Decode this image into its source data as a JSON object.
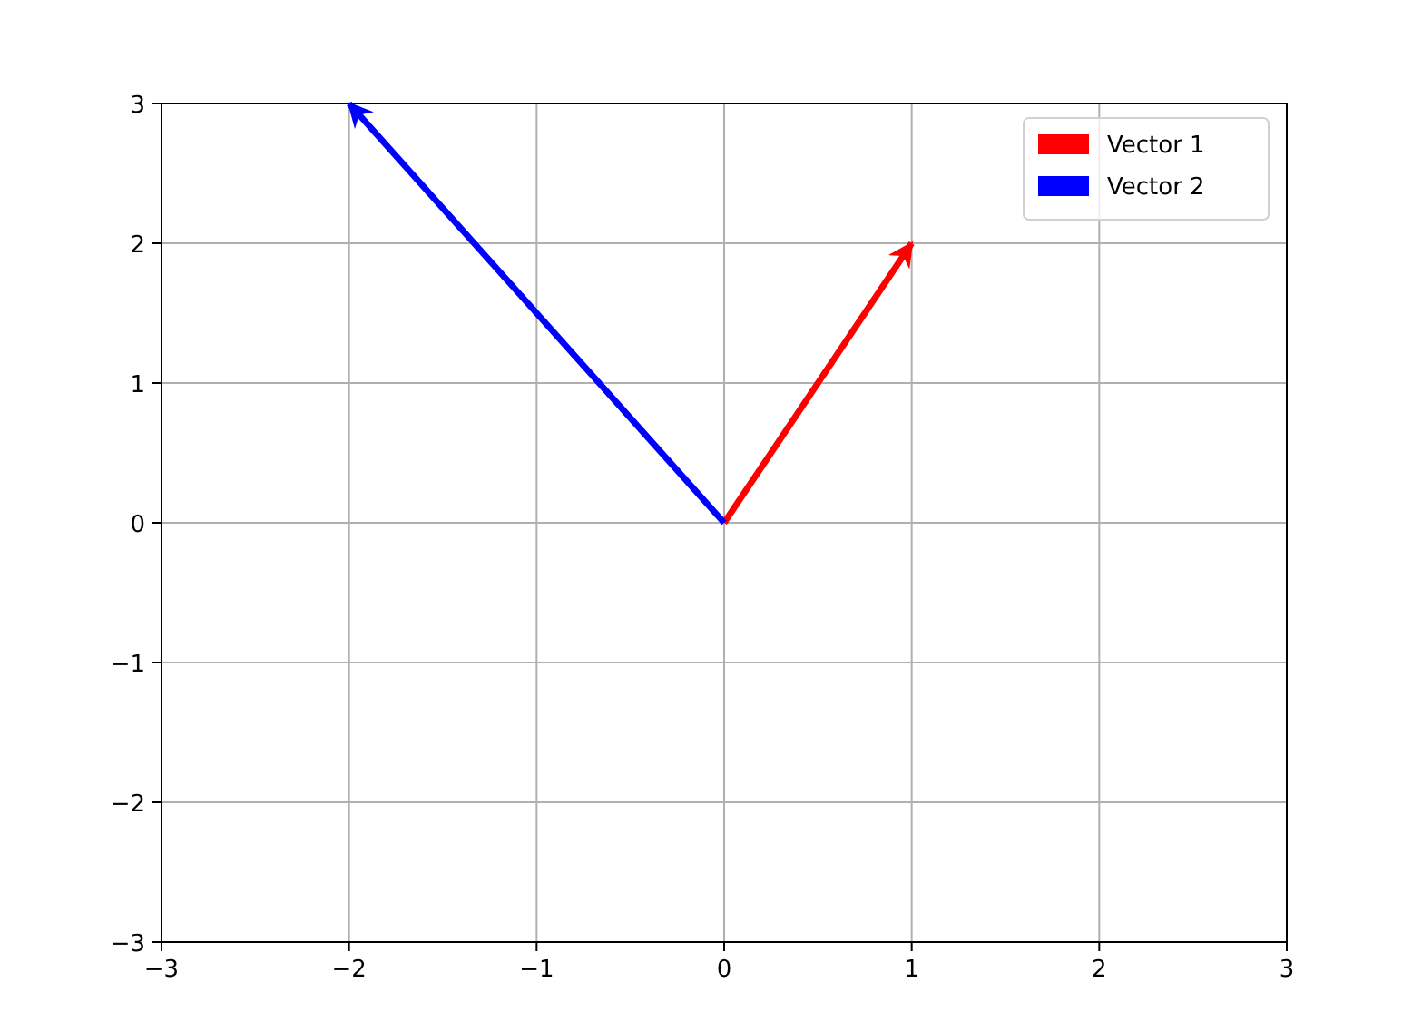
{
  "chart_data": {
    "type": "line",
    "xlim": [
      -3,
      3
    ],
    "ylim": [
      -3,
      3
    ],
    "xticks": [
      -3,
      -2,
      -1,
      0,
      1,
      2,
      3
    ],
    "yticks": [
      -3,
      -2,
      -1,
      0,
      1,
      2,
      3
    ],
    "grid": true,
    "legend": "top right",
    "marker": "none",
    "series": [
      {
        "name": "Vector 1",
        "color": "#ff0000",
        "x": [
          0,
          1
        ],
        "values": [
          0,
          2
        ]
      },
      {
        "name": "Vector 2",
        "color": "#0000ff",
        "x": [
          0,
          -2
        ],
        "values": [
          0,
          3
        ]
      }
    ]
  }
}
